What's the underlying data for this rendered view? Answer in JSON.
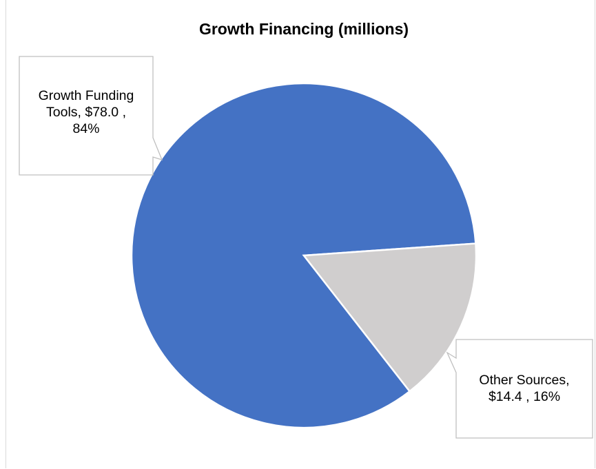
{
  "chart_data": {
    "type": "pie",
    "title": "Growth Financing (millions)",
    "slices": [
      {
        "label": "Growth Funding Tools",
        "value": 78.0,
        "percent": 84,
        "color": "#4472c4",
        "data_label": [
          "Growth Funding",
          "Tools,  $78.0 ,",
          "84%"
        ]
      },
      {
        "label": "Other Sources",
        "value": 14.4,
        "percent": 16,
        "color": "#d0cece",
        "data_label": [
          "Other Sources,",
          "$14.4 , 16%"
        ]
      }
    ],
    "legend": "none",
    "grid": false
  }
}
